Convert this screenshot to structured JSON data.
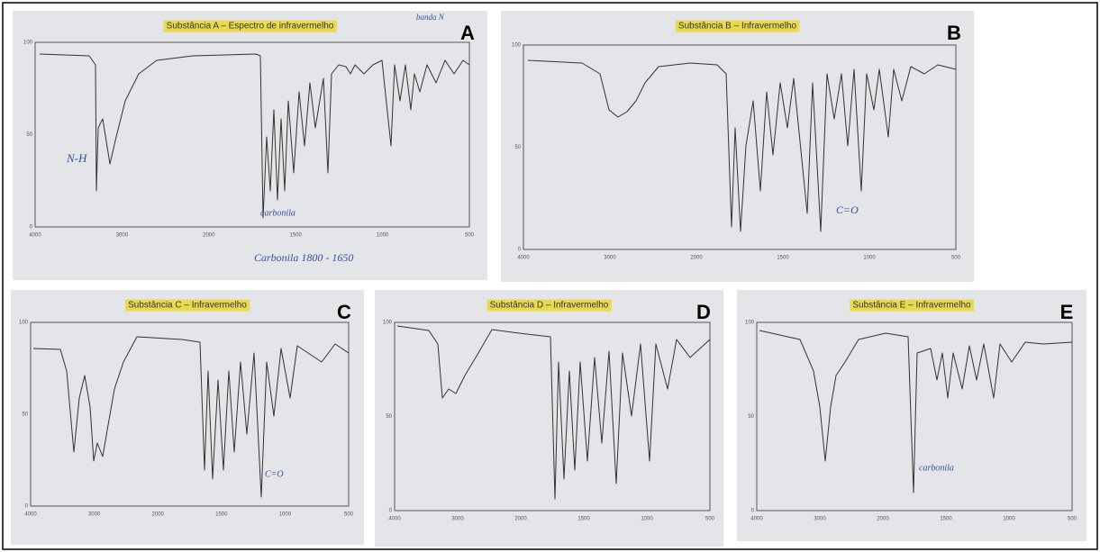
{
  "panels": [
    {
      "title": "Substância A – Espectro de infravermelho",
      "letter": "A",
      "annotations": [
        "N-H",
        "carbonila",
        "Carbonila 1800 - 1650",
        "banda N"
      ],
      "xticks": [
        4000,
        3000,
        2000,
        1500,
        1000,
        500
      ],
      "yticks": [
        100,
        50,
        0
      ]
    },
    {
      "title": "Substância B – Infravermelho",
      "letter": "B",
      "annotations": [
        "C=O"
      ],
      "xticks": [
        4000,
        3000,
        2000,
        1500,
        1000,
        500
      ],
      "yticks": [
        100,
        50,
        0
      ]
    },
    {
      "title": "Substância C – Infravermelho",
      "letter": "C",
      "annotations": [
        "C=O"
      ],
      "xticks": [
        4000,
        3000,
        2000,
        1500,
        1000,
        500
      ],
      "yticks": [
        100,
        50,
        0
      ]
    },
    {
      "title": "Substância D – Infravermelho",
      "letter": "D",
      "annotations": [],
      "xticks": [
        4000,
        3000,
        2000,
        1500,
        1000,
        500
      ],
      "yticks": [
        100,
        50,
        0
      ]
    },
    {
      "title": "Substância E – Infravermelho",
      "letter": "E",
      "annotations": [
        "carbonila"
      ],
      "xticks": [
        4000,
        3000,
        2000,
        1500,
        1000,
        500
      ],
      "yticks": [
        100,
        50,
        0
      ]
    }
  ]
}
